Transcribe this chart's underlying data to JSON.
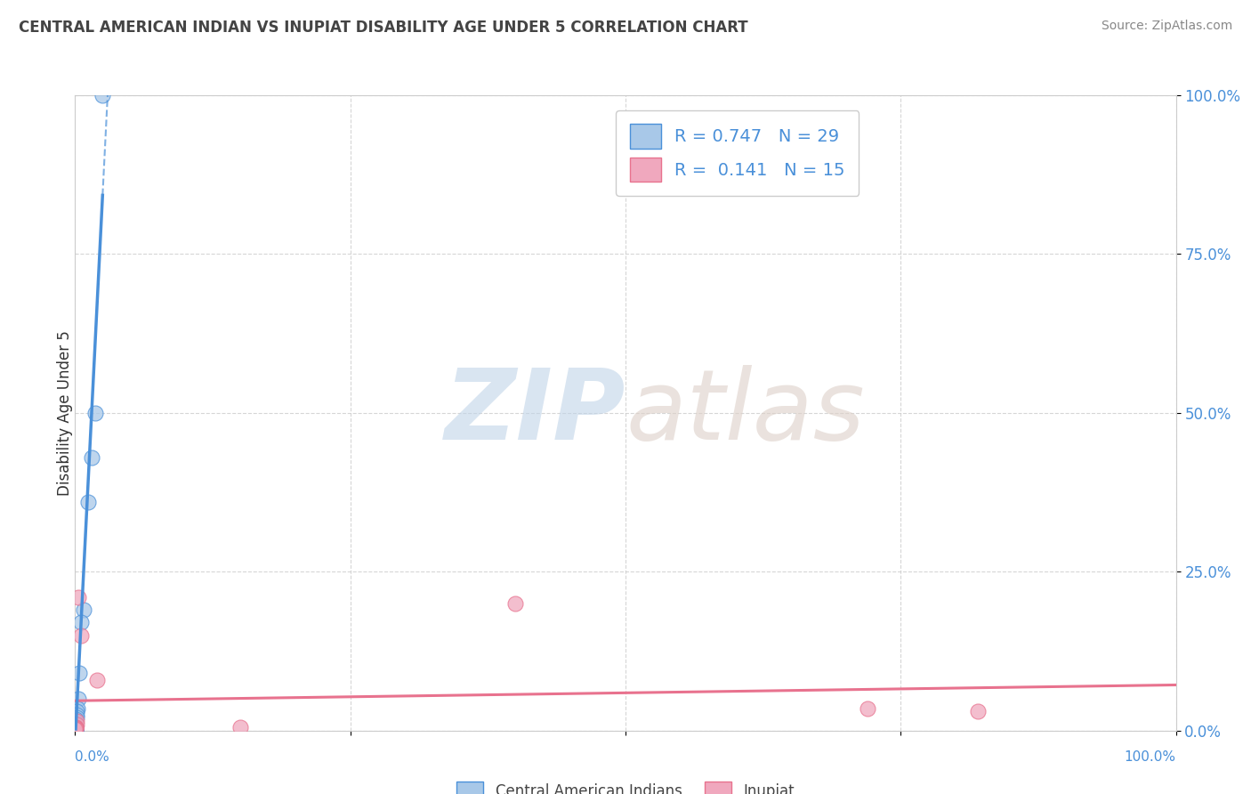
{
  "title": "CENTRAL AMERICAN INDIAN VS INUPIAT DISABILITY AGE UNDER 5 CORRELATION CHART",
  "source": "Source: ZipAtlas.com",
  "ylabel": "Disability Age Under 5",
  "legend1_label": "R = 0.747   N = 29",
  "legend2_label": "R =  0.141   N = 15",
  "blue_scatter_x": [
    2.5,
    1.8,
    1.5,
    1.2,
    0.8,
    0.5,
    0.4,
    0.3,
    0.2,
    0.15,
    0.12,
    0.1,
    0.08,
    0.06,
    0.05,
    0.05,
    0.05,
    0.05,
    0.04,
    0.04,
    0.04,
    0.03,
    0.03,
    0.03,
    0.02,
    0.02,
    0.02,
    0.01,
    0.01
  ],
  "blue_scatter_y": [
    100.0,
    50.0,
    43.0,
    36.0,
    19.0,
    17.0,
    9.0,
    5.0,
    3.5,
    3.0,
    2.5,
    2.0,
    1.8,
    1.5,
    1.2,
    1.0,
    0.8,
    0.6,
    0.5,
    0.4,
    0.3,
    0.3,
    0.2,
    0.2,
    0.1,
    0.1,
    0.1,
    0.1,
    0.1
  ],
  "pink_scatter_x": [
    0.5,
    2.0,
    0.3,
    0.15,
    0.1,
    0.08,
    0.05,
    0.04,
    0.03,
    0.02,
    0.01,
    15.0,
    40.0,
    72.0,
    82.0
  ],
  "pink_scatter_y": [
    15.0,
    8.0,
    21.0,
    1.5,
    1.0,
    0.5,
    0.5,
    0.3,
    0.3,
    0.2,
    0.2,
    0.5,
    20.0,
    3.5,
    3.0
  ],
  "blue_line_color": "#4a90d9",
  "pink_line_color": "#e8728e",
  "blue_scatter_color": "#a8c8e8",
  "pink_scatter_color": "#f0a8be",
  "background_color": "#ffffff",
  "grid_color": "#cccccc",
  "R_blue": 0.747,
  "N_blue": 29,
  "R_pink": 0.141,
  "N_pink": 15,
  "xlim": [
    0,
    100
  ],
  "ylim": [
    0,
    100
  ],
  "xtick_vals": [
    0,
    25,
    50,
    75,
    100
  ],
  "ytick_vals": [
    0,
    25,
    50,
    75,
    100
  ]
}
